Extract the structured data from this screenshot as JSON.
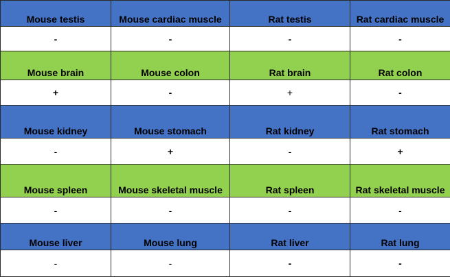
{
  "table": {
    "columns": 4,
    "sections": [
      {
        "color": "#4472c4",
        "tissues": [
          "Mouse testis",
          "Mouse cardiac muscle",
          "Rat testis",
          "Rat cardiac muscle"
        ],
        "results": [
          {
            "value": "-",
            "weight": "bold"
          },
          {
            "value": "-",
            "weight": "bold"
          },
          {
            "value": "-",
            "weight": "bold"
          },
          {
            "value": "-",
            "weight": "bold"
          }
        ]
      },
      {
        "color": "#92d050",
        "tissues": [
          "Mouse brain",
          "Mouse colon",
          "Rat brain",
          "Rat colon"
        ],
        "results": [
          {
            "value": "+",
            "weight": "bold"
          },
          {
            "value": "-",
            "weight": "bold"
          },
          {
            "value": "+",
            "weight": "normal"
          },
          {
            "value": "-",
            "weight": "bold"
          }
        ]
      },
      {
        "color": "#4472c4",
        "tissues": [
          "Mouse kidney",
          "Mouse stomach",
          "Rat kidney",
          "Rat stomach"
        ],
        "results": [
          {
            "value": "-",
            "weight": "normal"
          },
          {
            "value": "+",
            "weight": "bold"
          },
          {
            "value": "-",
            "weight": "normal"
          },
          {
            "value": "+",
            "weight": "bold"
          }
        ]
      },
      {
        "color": "#92d050",
        "tissues": [
          "Mouse spleen",
          "Mouse skeletal muscle",
          "Rat spleen",
          "Rat skeletal muscle"
        ],
        "results": [
          {
            "value": "-",
            "weight": "normal"
          },
          {
            "value": "-",
            "weight": "normal"
          },
          {
            "value": "-",
            "weight": "normal"
          },
          {
            "value": "-",
            "weight": "normal"
          }
        ]
      },
      {
        "color": "#4472c4",
        "tissues": [
          "Mouse liver",
          "Mouse lung",
          "Rat liver",
          "Rat lung"
        ],
        "results": [
          {
            "value": "-",
            "weight": "normal"
          },
          {
            "value": "-",
            "weight": "normal"
          },
          {
            "value": "-",
            "weight": "bold"
          },
          {
            "value": "-",
            "weight": "bold"
          }
        ]
      }
    ]
  }
}
